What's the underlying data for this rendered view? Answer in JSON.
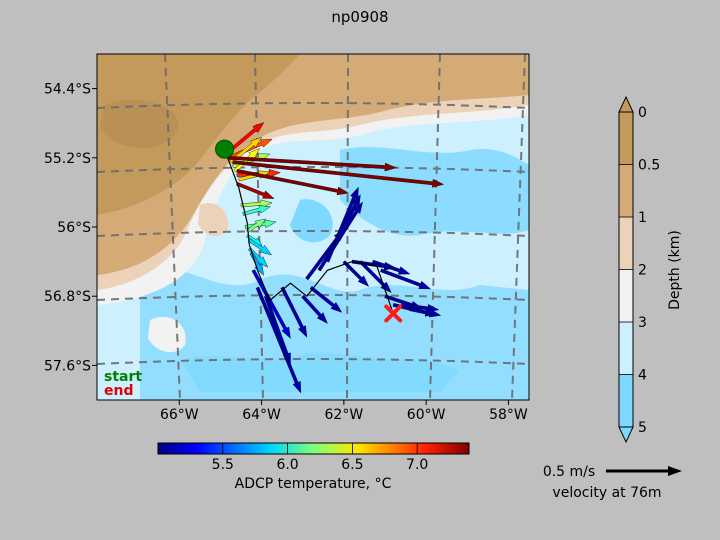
{
  "title": "np0908",
  "legend_start": "start",
  "legend_end": "end",
  "chart_data": {
    "type": "vector-map",
    "title": "np0908",
    "x_axis": {
      "range": [
        -68,
        -57.5
      ],
      "ticks": [
        -66,
        -64,
        -62,
        -60,
        -58
      ],
      "tick_labels": [
        "66°W",
        "64°W",
        "62°W",
        "60°W",
        "58°W"
      ]
    },
    "y_axis": {
      "range": [
        -58.0,
        -54.0
      ],
      "ticks": [
        -54.4,
        -55.2,
        -56.0,
        -56.8,
        -57.6
      ],
      "tick_labels": [
        "54.4°S",
        "55.2°S",
        "56°S",
        "56.8°S",
        "57.6°S"
      ]
    },
    "track": {
      "start": {
        "lon": -64.9,
        "lat": -55.1
      },
      "end": {
        "lon": -60.8,
        "lat": -57.0
      },
      "points": [
        [
          -64.9,
          -55.1
        ],
        [
          -64.55,
          -55.55
        ],
        [
          -64.35,
          -55.95
        ],
        [
          -64.3,
          -56.2
        ],
        [
          -64.1,
          -56.5
        ],
        [
          -63.8,
          -56.85
        ],
        [
          -63.3,
          -56.65
        ],
        [
          -62.9,
          -56.8
        ],
        [
          -62.4,
          -56.5
        ],
        [
          -61.8,
          -56.4
        ],
        [
          -61.2,
          -56.45
        ],
        [
          -60.8,
          -57.0
        ]
      ]
    },
    "vectors": [
      {
        "lon": -64.85,
        "lat": -55.15,
        "u": 0.3,
        "v": 0.25,
        "temp": 7.1
      },
      {
        "lon": -64.8,
        "lat": -55.2,
        "u": 0.35,
        "v": 0.15,
        "temp": 6.9
      },
      {
        "lon": -64.75,
        "lat": -55.25,
        "u": 0.25,
        "v": 0.2,
        "temp": 6.6
      },
      {
        "lon": -64.7,
        "lat": -55.3,
        "u": 0.3,
        "v": 0.1,
        "temp": 6.3
      },
      {
        "lon": -64.65,
        "lat": -55.35,
        "u": 0.2,
        "v": 0.18,
        "temp": 6.5
      },
      {
        "lon": -64.6,
        "lat": -55.4,
        "u": 0.35,
        "v": 0.02,
        "temp": 7.0
      },
      {
        "lon": -64.55,
        "lat": -55.45,
        "u": 0.25,
        "v": 0.06,
        "temp": 6.6
      },
      {
        "lon": -64.8,
        "lat": -55.2,
        "u": 1.35,
        "v": -0.08,
        "temp": 7.4
      },
      {
        "lon": -64.7,
        "lat": -55.25,
        "u": 1.7,
        "v": -0.18,
        "temp": 7.4
      },
      {
        "lon": -64.6,
        "lat": -55.35,
        "u": 0.9,
        "v": -0.18,
        "temp": 7.4
      },
      {
        "lon": -64.6,
        "lat": -55.5,
        "u": 0.3,
        "v": -0.12,
        "temp": 7.3
      },
      {
        "lon": -64.5,
        "lat": -55.75,
        "u": 0.25,
        "v": 0.02,
        "temp": 6.3
      },
      {
        "lon": -64.45,
        "lat": -55.85,
        "u": 0.22,
        "v": 0.06,
        "temp": 6.0
      },
      {
        "lon": -64.4,
        "lat": -56.0,
        "u": 0.25,
        "v": 0.04,
        "temp": 6.1
      },
      {
        "lon": -64.35,
        "lat": -56.05,
        "u": 0.15,
        "v": 0.1,
        "temp": 6.2
      },
      {
        "lon": -64.35,
        "lat": -56.1,
        "u": 0.12,
        "v": -0.08,
        "temp": 5.9
      },
      {
        "lon": -64.3,
        "lat": -56.15,
        "u": 0.18,
        "v": -0.12,
        "temp": 5.8
      },
      {
        "lon": -64.3,
        "lat": -56.25,
        "u": 0.15,
        "v": -0.15,
        "temp": 5.8
      },
      {
        "lon": -64.25,
        "lat": -56.3,
        "u": 0.1,
        "v": -0.18,
        "temp": 5.7
      },
      {
        "lon": -64.2,
        "lat": -56.5,
        "u": 0.3,
        "v": -0.55,
        "temp": 5.2
      },
      {
        "lon": -64.1,
        "lat": -56.7,
        "u": 0.35,
        "v": -0.85,
        "temp": 5.1
      },
      {
        "lon": -63.9,
        "lat": -56.8,
        "u": 0.2,
        "v": -0.55,
        "temp": 5.1
      },
      {
        "lon": -63.5,
        "lat": -56.7,
        "u": 0.2,
        "v": -0.4,
        "temp": 5.1
      },
      {
        "lon": -63.0,
        "lat": -56.8,
        "u": 0.2,
        "v": -0.22,
        "temp": 5.1
      },
      {
        "lon": -62.8,
        "lat": -56.7,
        "u": 0.25,
        "v": -0.2,
        "temp": 5.1
      },
      {
        "lon": -62.9,
        "lat": -56.6,
        "u": 0.3,
        "v": 0.4,
        "temp": 5.1
      },
      {
        "lon": -62.6,
        "lat": -56.5,
        "u": 0.35,
        "v": 0.55,
        "temp": 5.1
      },
      {
        "lon": -62.4,
        "lat": -56.4,
        "u": 0.25,
        "v": 0.6,
        "temp": 5.1
      },
      {
        "lon": -62.2,
        "lat": -56.2,
        "u": 0.2,
        "v": 0.4,
        "temp": 5.1
      },
      {
        "lon": -62.0,
        "lat": -56.4,
        "u": 0.2,
        "v": -0.2,
        "temp": 5.1
      },
      {
        "lon": -61.8,
        "lat": -56.4,
        "u": 0.35,
        "v": -0.05,
        "temp": 5.1
      },
      {
        "lon": -61.6,
        "lat": -56.4,
        "u": 0.25,
        "v": -0.25,
        "temp": 5.1
      },
      {
        "lon": -61.3,
        "lat": -56.4,
        "u": 0.3,
        "v": -0.1,
        "temp": 5.1
      },
      {
        "lon": -61.1,
        "lat": -56.5,
        "u": 0.4,
        "v": -0.15,
        "temp": 5.1
      },
      {
        "lon": -61.0,
        "lat": -56.8,
        "u": 0.3,
        "v": -0.1,
        "temp": 5.1
      },
      {
        "lon": -60.8,
        "lat": -56.9,
        "u": 0.35,
        "v": -0.08,
        "temp": 5.1
      },
      {
        "lon": -60.6,
        "lat": -56.9,
        "u": 0.3,
        "v": -0.04,
        "temp": 5.1
      },
      {
        "lon": -60.4,
        "lat": -56.95,
        "u": 0.25,
        "v": -0.05,
        "temp": 5.1
      }
    ],
    "colorbar_temperature": {
      "label": "ADCP temperature, °C",
      "range": [
        5.0,
        7.4
      ],
      "ticks": [
        5.5,
        6.0,
        6.5,
        7.0
      ],
      "tick_labels": [
        "5.5",
        "6.0",
        "6.5",
        "7.0"
      ]
    },
    "colorbar_depth": {
      "label": "Depth (km)",
      "ticks": [
        0,
        0.5,
        1,
        2,
        3,
        4,
        5
      ],
      "tick_labels": [
        "0",
        "0.5",
        "1",
        "2",
        "3",
        "4",
        "5"
      ],
      "colors": [
        "#c49a5c",
        "#d4ab76",
        "#ecd2b8",
        "#f2f2f2",
        "#cdf0ff",
        "#7fd8ff"
      ]
    },
    "scale_arrow": {
      "speed": 0.5,
      "label": "0.5 m/s",
      "caption": "velocity at 76m"
    }
  }
}
